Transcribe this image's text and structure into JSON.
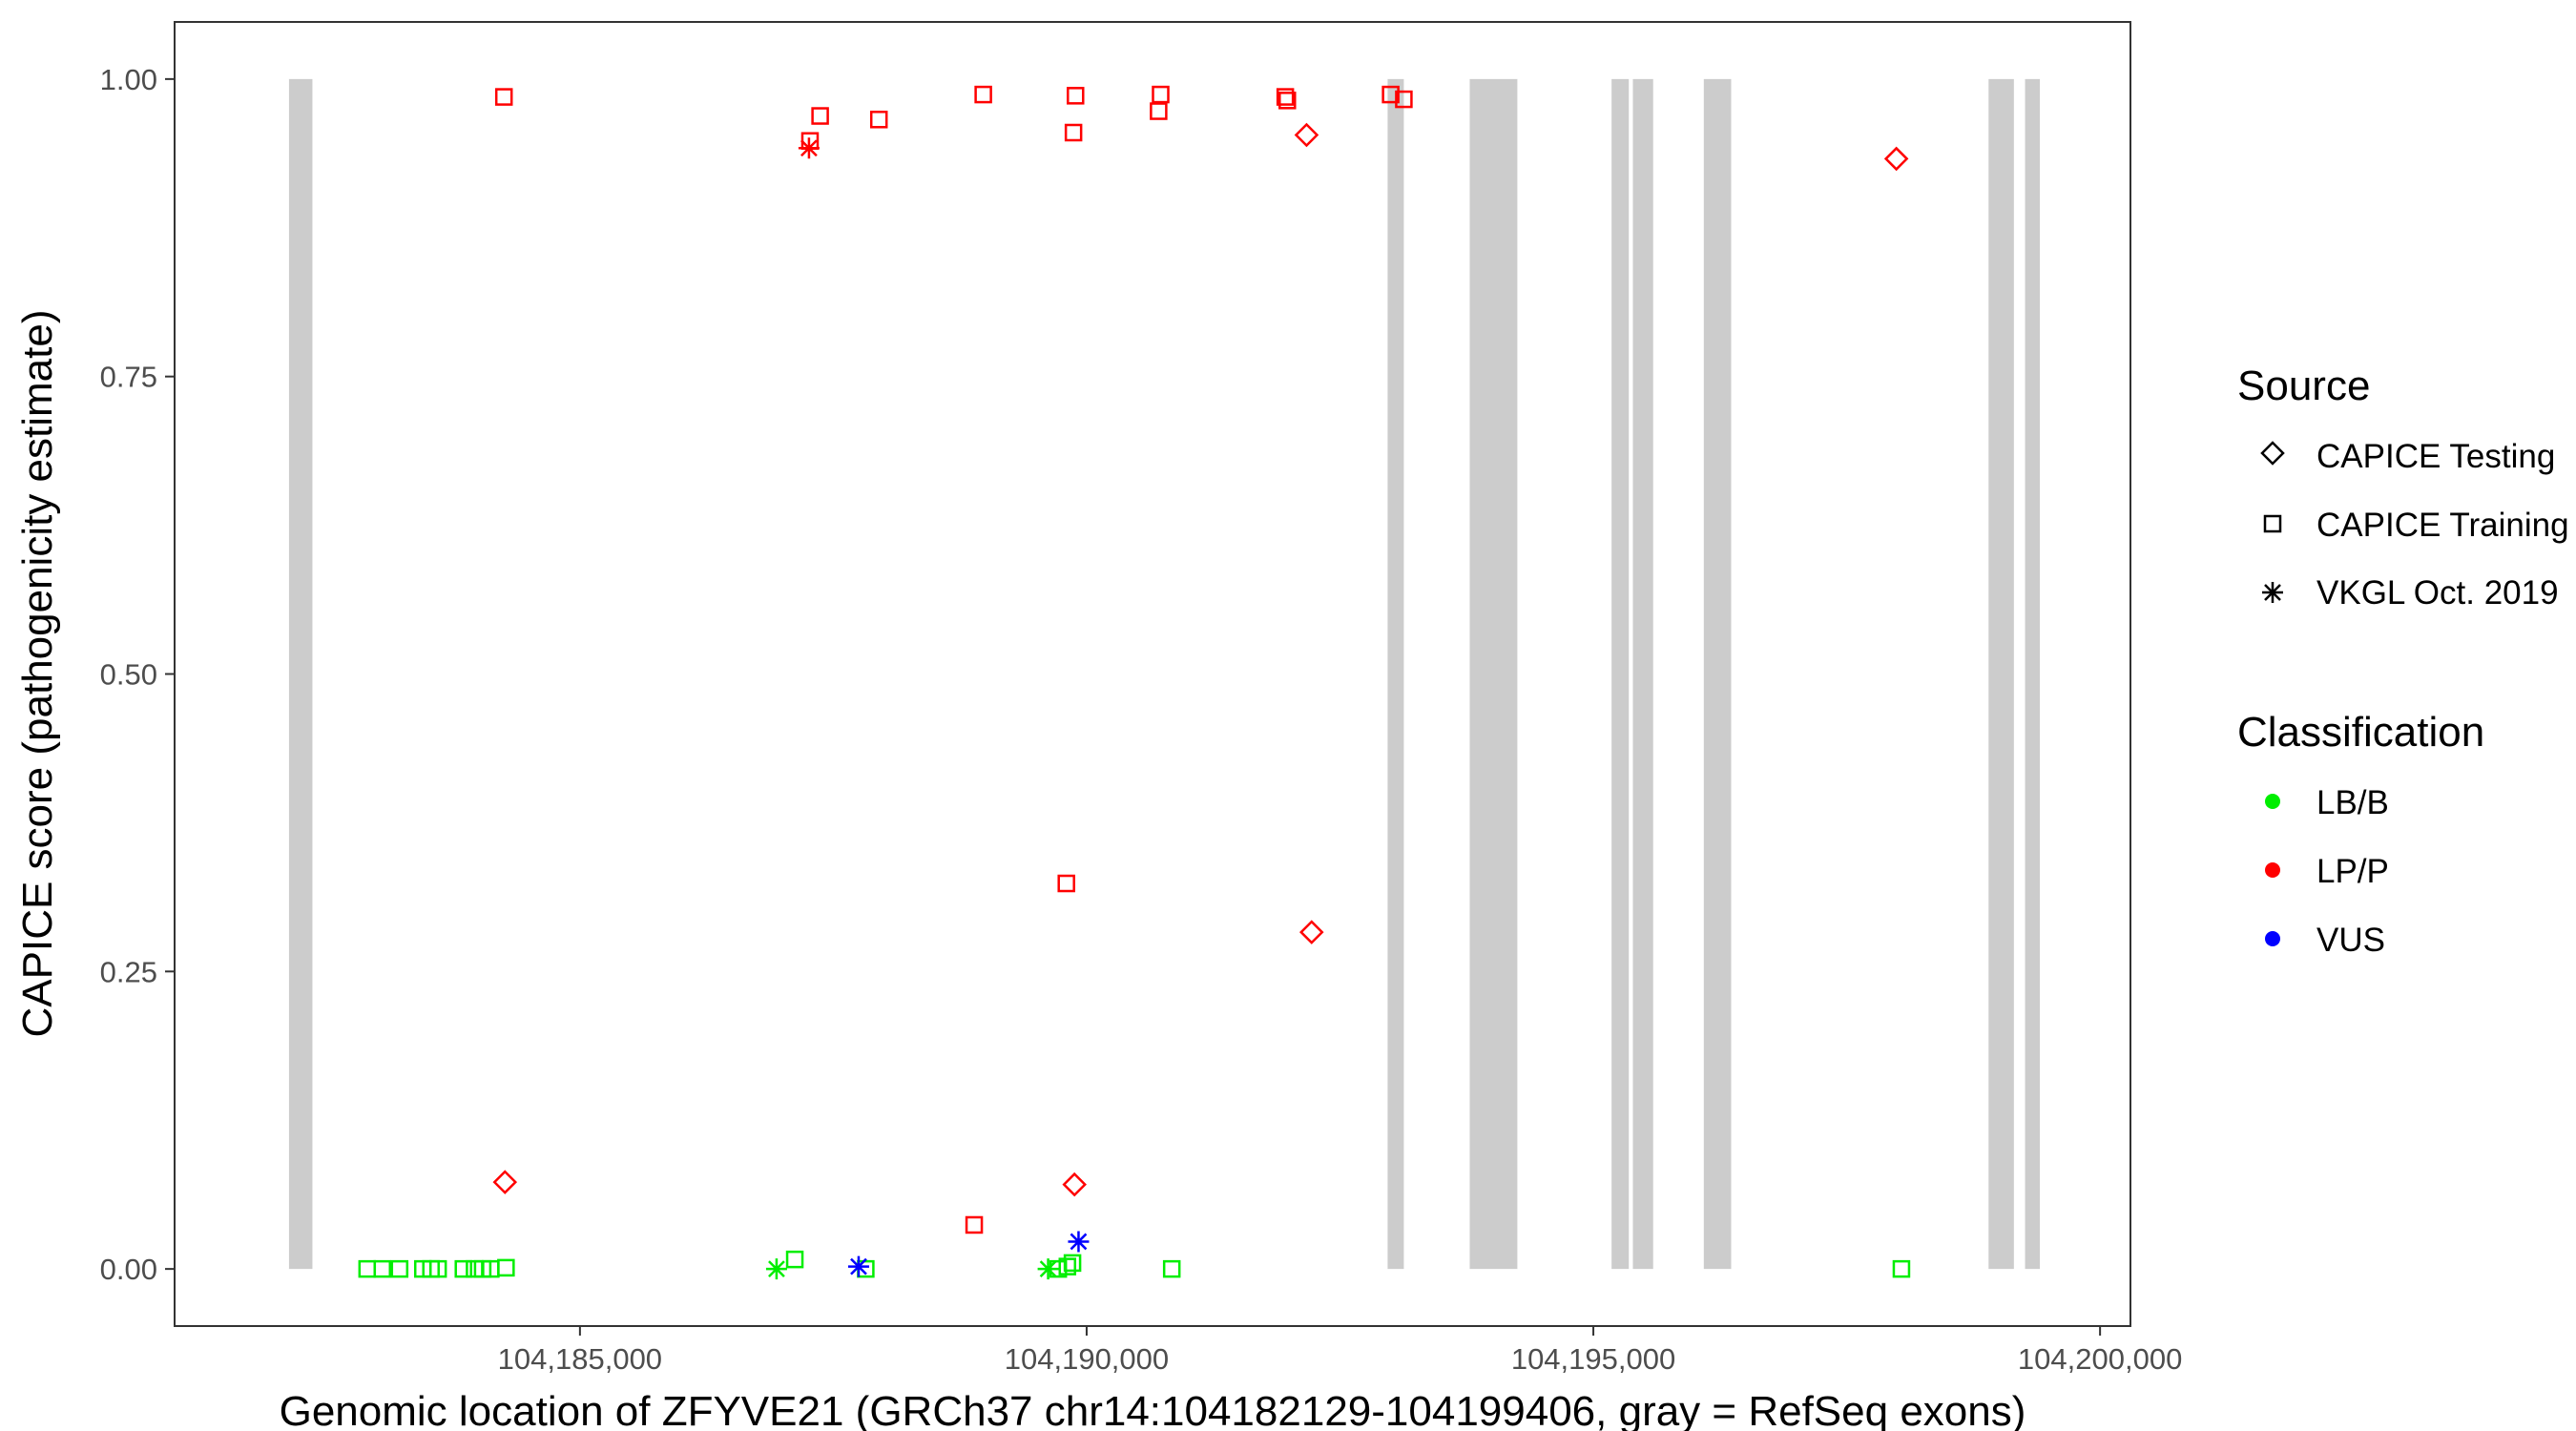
{
  "chart_data": {
    "type": "scatter",
    "xlabel": "Genomic location of ZFYVE21 (GRCh37 chr14:104182129-104199406, gray = RefSeq exons)",
    "ylabel": "CAPICE score (pathogenicity estimate)",
    "xlim": [
      104181000,
      104200300
    ],
    "ylim": [
      -0.048,
      1.048
    ],
    "x_ticks": [
      104185000,
      104190000,
      104195000,
      104200000
    ],
    "x_tick_labels": [
      "104,185,000",
      "104,190,000",
      "104,195,000",
      "104,200,000"
    ],
    "y_ticks": [
      0,
      0.25,
      0.5,
      0.75,
      1
    ],
    "y_tick_labels": [
      "0.00",
      "0.25",
      "0.50",
      "0.75",
      "1.00"
    ],
    "grid": false,
    "legend_placement": "right",
    "exons": [
      [
        104182129,
        104182360
      ],
      [
        104192970,
        104193130
      ],
      [
        104193780,
        104194250
      ],
      [
        104195180,
        104195350
      ],
      [
        104195390,
        104195590
      ],
      [
        104196090,
        104196360
      ],
      [
        104198900,
        104199150
      ],
      [
        104199260,
        104199406
      ]
    ],
    "legend": {
      "source_title": "Source",
      "source_items": [
        {
          "label": "CAPICE Testing",
          "shape": "diamond"
        },
        {
          "label": "CAPICE Training",
          "shape": "square"
        },
        {
          "label": "VKGL Oct. 2019",
          "shape": "asterisk"
        }
      ],
      "class_title": "Classification",
      "class_items": [
        {
          "label": "LB/B",
          "color": "#00ee00"
        },
        {
          "label": "LP/P",
          "color": "#ff0000"
        },
        {
          "label": "VUS",
          "color": "#0000ff"
        }
      ]
    },
    "colors": {
      "LB/B": "#00ee00",
      "LP/P": "#ff0000",
      "VUS": "#0000ff",
      "exon": "#cccccc"
    },
    "points": [
      {
        "x": 104184250,
        "y": 0.985,
        "shape": "square",
        "cls": "LP/P"
      },
      {
        "x": 104187270,
        "y": 0.948,
        "shape": "square",
        "cls": "LP/P"
      },
      {
        "x": 104187370,
        "y": 0.969,
        "shape": "square",
        "cls": "LP/P"
      },
      {
        "x": 104187950,
        "y": 0.966,
        "shape": "square",
        "cls": "LP/P"
      },
      {
        "x": 104188980,
        "y": 0.987,
        "shape": "square",
        "cls": "LP/P"
      },
      {
        "x": 104189890,
        "y": 0.986,
        "shape": "square",
        "cls": "LP/P"
      },
      {
        "x": 104189870,
        "y": 0.955,
        "shape": "square",
        "cls": "LP/P"
      },
      {
        "x": 104190730,
        "y": 0.987,
        "shape": "square",
        "cls": "LP/P"
      },
      {
        "x": 104190710,
        "y": 0.973,
        "shape": "square",
        "cls": "LP/P"
      },
      {
        "x": 104191960,
        "y": 0.985,
        "shape": "square",
        "cls": "LP/P"
      },
      {
        "x": 104191980,
        "y": 0.982,
        "shape": "square",
        "cls": "LP/P"
      },
      {
        "x": 104193000,
        "y": 0.987,
        "shape": "square",
        "cls": "LP/P"
      },
      {
        "x": 104193130,
        "y": 0.983,
        "shape": "square",
        "cls": "LP/P"
      },
      {
        "x": 104192170,
        "y": 0.953,
        "shape": "diamond",
        "cls": "LP/P"
      },
      {
        "x": 104197990,
        "y": 0.933,
        "shape": "diamond",
        "cls": "LP/P"
      },
      {
        "x": 104187260,
        "y": 0.942,
        "shape": "asterisk",
        "cls": "LP/P"
      },
      {
        "x": 104189800,
        "y": 0.324,
        "shape": "square",
        "cls": "LP/P"
      },
      {
        "x": 104192220,
        "y": 0.283,
        "shape": "diamond",
        "cls": "LP/P"
      },
      {
        "x": 104184260,
        "y": 0.073,
        "shape": "diamond",
        "cls": "LP/P"
      },
      {
        "x": 104189880,
        "y": 0.071,
        "shape": "diamond",
        "cls": "LP/P"
      },
      {
        "x": 104188890,
        "y": 0.037,
        "shape": "square",
        "cls": "LP/P"
      },
      {
        "x": 104182900,
        "y": 0.0,
        "shape": "square",
        "cls": "LB/B"
      },
      {
        "x": 104183050,
        "y": 0.0,
        "shape": "square",
        "cls": "LB/B"
      },
      {
        "x": 104183220,
        "y": 0.0,
        "shape": "square",
        "cls": "LB/B"
      },
      {
        "x": 104183450,
        "y": 0.0,
        "shape": "square",
        "cls": "LB/B"
      },
      {
        "x": 104183530,
        "y": 0.0,
        "shape": "square",
        "cls": "LB/B"
      },
      {
        "x": 104183600,
        "y": 0.0,
        "shape": "square",
        "cls": "LB/B"
      },
      {
        "x": 104183850,
        "y": 0.0,
        "shape": "square",
        "cls": "LB/B"
      },
      {
        "x": 104183960,
        "y": 0.0,
        "shape": "square",
        "cls": "LB/B"
      },
      {
        "x": 104184040,
        "y": 0.0,
        "shape": "square",
        "cls": "LB/B"
      },
      {
        "x": 104184120,
        "y": 0.0,
        "shape": "square",
        "cls": "LB/B"
      },
      {
        "x": 104184270,
        "y": 0.001,
        "shape": "square",
        "cls": "LB/B"
      },
      {
        "x": 104187120,
        "y": 0.008,
        "shape": "square",
        "cls": "LB/B"
      },
      {
        "x": 104187820,
        "y": 0.0,
        "shape": "square",
        "cls": "LB/B"
      },
      {
        "x": 104189720,
        "y": 0.0,
        "shape": "square",
        "cls": "LB/B"
      },
      {
        "x": 104189810,
        "y": 0.002,
        "shape": "square",
        "cls": "LB/B"
      },
      {
        "x": 104189860,
        "y": 0.005,
        "shape": "square",
        "cls": "LB/B"
      },
      {
        "x": 104190840,
        "y": 0.0,
        "shape": "square",
        "cls": "LB/B"
      },
      {
        "x": 104198040,
        "y": 0.0,
        "shape": "square",
        "cls": "LB/B"
      },
      {
        "x": 104186940,
        "y": 0.0,
        "shape": "asterisk",
        "cls": "LB/B"
      },
      {
        "x": 104189620,
        "y": 0.0,
        "shape": "asterisk",
        "cls": "LB/B"
      },
      {
        "x": 104187750,
        "y": 0.002,
        "shape": "asterisk",
        "cls": "VUS"
      },
      {
        "x": 104189920,
        "y": 0.023,
        "shape": "asterisk",
        "cls": "VUS"
      }
    ]
  }
}
